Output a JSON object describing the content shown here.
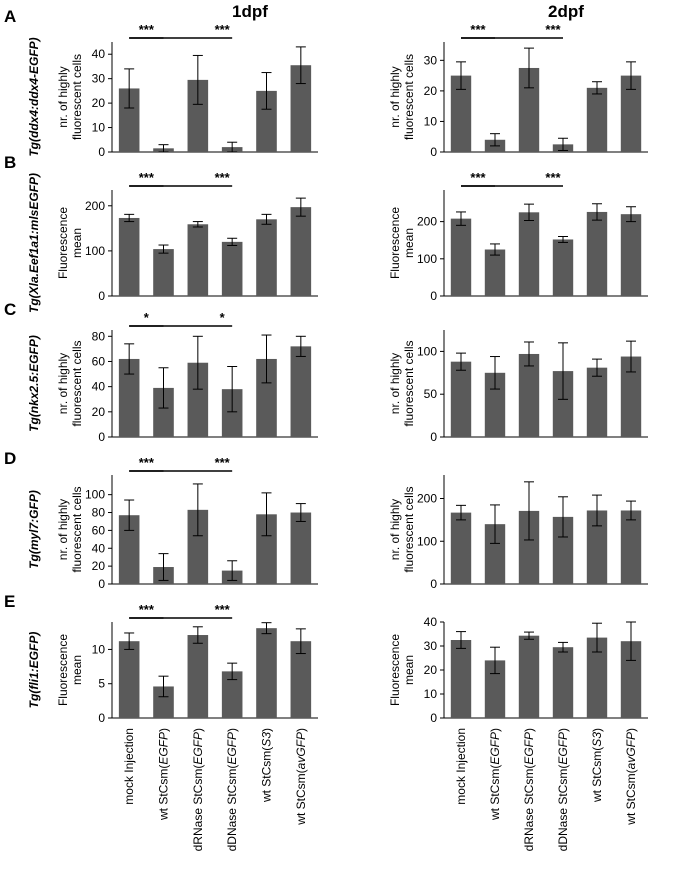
{
  "figure": {
    "column_titles": [
      "1dpf",
      "2dpf"
    ],
    "categories_rich": [
      [
        "mock Injection",
        ""
      ],
      [
        "wt StCsm(",
        "EGFP",
        ")"
      ],
      [
        "dRNase StCsm(",
        "EGFP",
        ")"
      ],
      [
        "dDNase StCsm(",
        "EGFP",
        ")"
      ],
      [
        "wt StCsm(",
        "S3",
        ")"
      ],
      [
        "wt StCsm(",
        "avGFP",
        ")"
      ]
    ],
    "colors": {
      "bar": "#5a5a5a",
      "axis": "#000000"
    }
  },
  "chart_data": [
    {
      "panel": "A",
      "row_label": "Tg(ddx4:ddx4-EGFP)",
      "column": "1dpf",
      "type": "bar",
      "categories": [
        "mock Injection",
        "wt StCsm(EGFP)",
        "dRNase StCsm(EGFP)",
        "dDNase StCsm(EGFP)",
        "wt StCsm(S3)",
        "wt StCsm(avGFP)"
      ],
      "values": [
        26,
        1.5,
        29.5,
        2,
        25,
        35.5
      ],
      "errors": [
        8,
        1.5,
        10,
        2,
        7.5,
        7.5
      ],
      "ylabel": "nr. of highly fluorescent cells",
      "ylim": [
        0,
        45
      ],
      "yticks": [
        0,
        10,
        20,
        30,
        40
      ],
      "significance": [
        {
          "from": 0,
          "to": 1,
          "label": "***"
        },
        {
          "from": 0,
          "to": 3,
          "label": "***"
        }
      ]
    },
    {
      "panel": "A",
      "row_label": "Tg(ddx4:ddx4-EGFP)",
      "column": "2dpf",
      "type": "bar",
      "categories": [
        "mock Injection",
        "wt StCsm(EGFP)",
        "dRNase StCsm(EGFP)",
        "dDNase StCsm(EGFP)",
        "wt StCsm(S3)",
        "wt StCsm(avGFP)"
      ],
      "values": [
        25,
        4,
        27.5,
        2.5,
        21,
        25
      ],
      "errors": [
        4.5,
        2,
        6.5,
        2,
        2,
        4.5
      ],
      "ylabel": "nr. of highly fluorescent cells",
      "ylim": [
        0,
        36
      ],
      "yticks": [
        0,
        10,
        20,
        30
      ],
      "significance": [
        {
          "from": 0,
          "to": 1,
          "label": "***"
        },
        {
          "from": 0,
          "to": 3,
          "label": "***"
        }
      ]
    },
    {
      "panel": "B",
      "row_label": "Tg(Xla.Eef1a1:mlsEGFP)",
      "column": "1dpf",
      "type": "bar",
      "categories": [
        "mock Injection",
        "wt StCsm(EGFP)",
        "dRNase StCsm(EGFP)",
        "dDNase StCsm(EGFP)",
        "wt StCsm(S3)",
        "wt StCsm(avGFP)"
      ],
      "values": [
        173,
        104,
        159,
        120,
        170,
        197
      ],
      "errors": [
        8,
        9,
        6,
        8,
        11,
        20
      ],
      "ylabel": "Fluorescence mean",
      "ylim": [
        0,
        235
      ],
      "yticks": [
        0,
        100,
        200
      ],
      "significance": [
        {
          "from": 0,
          "to": 1,
          "label": "***"
        },
        {
          "from": 0,
          "to": 3,
          "label": "***"
        }
      ]
    },
    {
      "panel": "B",
      "row_label": "Tg(Xla.Eef1a1:mlsEGFP)",
      "column": "2dpf",
      "type": "bar",
      "categories": [
        "mock Injection",
        "wt StCsm(EGFP)",
        "dRNase StCsm(EGFP)",
        "dDNase StCsm(EGFP)",
        "wt StCsm(S3)",
        "wt StCsm(avGFP)"
      ],
      "values": [
        208,
        125,
        225,
        152,
        226,
        220
      ],
      "errors": [
        18,
        15,
        22,
        8,
        22,
        20
      ],
      "ylabel": "Fluorescence mean",
      "ylim": [
        0,
        285
      ],
      "yticks": [
        0,
        100,
        200
      ],
      "significance": [
        {
          "from": 0,
          "to": 1,
          "label": "***"
        },
        {
          "from": 0,
          "to": 3,
          "label": "***"
        }
      ]
    },
    {
      "panel": "C",
      "row_label": "Tg(nkx2.5:EGFP)",
      "column": "1dpf",
      "type": "bar",
      "categories": [
        "mock Injection",
        "wt StCsm(EGFP)",
        "dRNase StCsm(EGFP)",
        "dDNase StCsm(EGFP)",
        "wt StCsm(S3)",
        "wt StCsm(avGFP)"
      ],
      "values": [
        62,
        39,
        59,
        38,
        62,
        72
      ],
      "errors": [
        12,
        16,
        21,
        18,
        19,
        8
      ],
      "ylabel": "nr. of highly fluorescent cells",
      "ylim": [
        0,
        85
      ],
      "yticks": [
        0,
        20,
        40,
        60,
        80
      ],
      "significance": [
        {
          "from": 0,
          "to": 1,
          "label": "*"
        },
        {
          "from": 0,
          "to": 3,
          "label": "*"
        }
      ]
    },
    {
      "panel": "C",
      "row_label": "Tg(nkx2.5:EGFP)",
      "column": "2dpf",
      "type": "bar",
      "categories": [
        "mock Injection",
        "wt StCsm(EGFP)",
        "dRNase StCsm(EGFP)",
        "dDNase StCsm(EGFP)",
        "wt StCsm(S3)",
        "wt StCsm(avGFP)"
      ],
      "values": [
        88,
        75,
        97,
        77,
        81,
        94
      ],
      "errors": [
        10,
        19,
        14,
        33,
        10,
        18
      ],
      "ylabel": "nr. of highly fluorescent cells",
      "ylim": [
        0,
        125
      ],
      "yticks": [
        0,
        50,
        100
      ],
      "significance": []
    },
    {
      "panel": "D",
      "row_label": "Tg(myl7:GFP)",
      "column": "1dpf",
      "type": "bar",
      "categories": [
        "mock Injection",
        "wt StCsm(EGFP)",
        "dRNase StCsm(EGFP)",
        "dDNase StCsm(EGFP)",
        "wt StCsm(S3)",
        "wt StCsm(avGFP)"
      ],
      "values": [
        77,
        19,
        83,
        15,
        78,
        80
      ],
      "errors": [
        17,
        15,
        29,
        11,
        24,
        10
      ],
      "ylabel": "nr. of highly fluorescent cells",
      "ylim": [
        0,
        122
      ],
      "yticks": [
        0,
        20,
        40,
        60,
        80,
        100
      ],
      "significance": [
        {
          "from": 0,
          "to": 1,
          "label": "***"
        },
        {
          "from": 0,
          "to": 3,
          "label": "***"
        }
      ]
    },
    {
      "panel": "D",
      "row_label": "Tg(myl7:GFP)",
      "column": "2dpf",
      "type": "bar",
      "categories": [
        "mock Injection",
        "wt StCsm(EGFP)",
        "dRNase StCsm(EGFP)",
        "dDNase StCsm(EGFP)",
        "wt StCsm(S3)",
        "wt StCsm(avGFP)"
      ],
      "values": [
        167,
        140,
        171,
        157,
        172,
        172
      ],
      "errors": [
        17,
        45,
        68,
        47,
        36,
        22
      ],
      "ylabel": "nr. of highly fluorescent cells",
      "ylim": [
        0,
        255
      ],
      "yticks": [
        0,
        100,
        200
      ],
      "significance": []
    },
    {
      "panel": "E",
      "row_label": "Tg(fli1:EGFP)",
      "column": "1dpf",
      "type": "bar",
      "categories": [
        "mock Injection",
        "wt StCsm(EGFP)",
        "dRNase StCsm(EGFP)",
        "dDNase StCsm(EGFP)",
        "wt StCsm(S3)",
        "wt StCsm(avGFP)"
      ],
      "values": [
        11.2,
        4.6,
        12.1,
        6.8,
        13.1,
        11.2
      ],
      "errors": [
        1.2,
        1.5,
        1.2,
        1.2,
        0.8,
        1.8
      ],
      "ylabel": "Fluorescence mean",
      "ylim": [
        0,
        14
      ],
      "yticks": [
        0,
        5,
        10
      ],
      "significance": [
        {
          "from": 0,
          "to": 1,
          "label": "***"
        },
        {
          "from": 0,
          "to": 3,
          "label": "***"
        }
      ]
    },
    {
      "panel": "E",
      "row_label": "Tg(fli1:EGFP)",
      "column": "2dpf",
      "type": "bar",
      "categories": [
        "mock Injection",
        "wt StCsm(EGFP)",
        "dRNase StCsm(EGFP)",
        "dDNase StCsm(EGFP)",
        "wt StCsm(S3)",
        "wt StCsm(avGFP)"
      ],
      "values": [
        32.5,
        24,
        34.3,
        29.5,
        33.5,
        32
      ],
      "errors": [
        3.5,
        5.5,
        1.5,
        2,
        6,
        8
      ],
      "ylabel": "Fluorescence mean",
      "ylim": [
        0,
        40
      ],
      "yticks": [
        0,
        10,
        20,
        30,
        40
      ],
      "significance": []
    }
  ]
}
